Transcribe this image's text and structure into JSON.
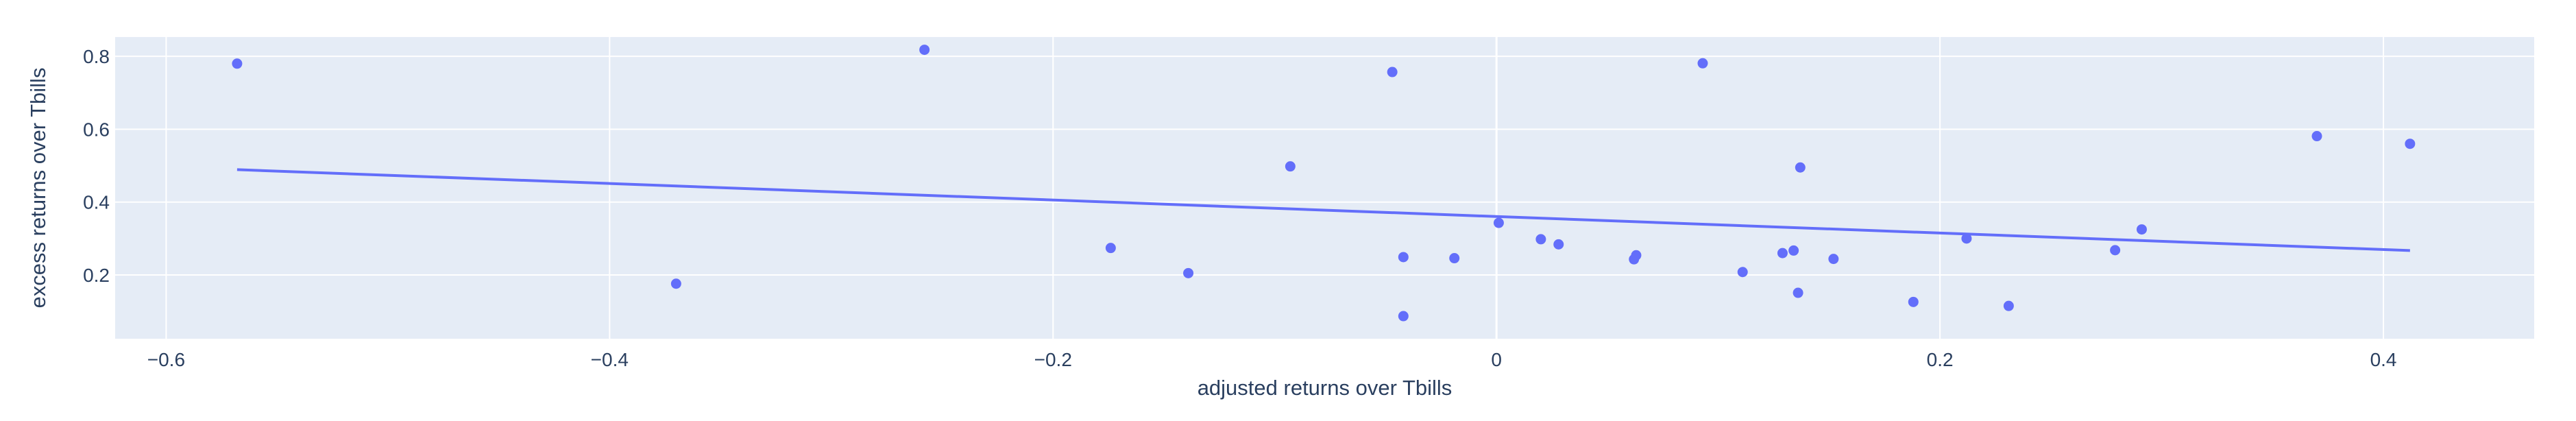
{
  "colors": {
    "plot_background": "#e5ecf6",
    "grid": "#ffffff",
    "marker": "#636efa",
    "line": "#636efa",
    "text": "#2a3f5f"
  },
  "chart_data": {
    "type": "scatter",
    "title": "",
    "xlabel": "adjusted returns over Tbills",
    "ylabel": "excess returns over Tbills",
    "xlim": [
      -0.623,
      0.468
    ],
    "ylim": [
      0.025,
      0.853
    ],
    "x_ticks": [
      -0.6,
      -0.4,
      -0.2,
      0,
      0.2,
      0.4
    ],
    "x_tick_labels": [
      "−0.6",
      "−0.4",
      "−0.2",
      "0",
      "0.2",
      "0.4"
    ],
    "y_ticks": [
      0.2,
      0.4,
      0.6,
      0.8
    ],
    "y_tick_labels": [
      "0.2",
      "0.4",
      "0.6",
      "0.8"
    ],
    "grid": true,
    "legend": false,
    "points": {
      "x": [
        -0.568,
        -0.258,
        -0.37,
        -0.093,
        -0.174,
        -0.139,
        -0.047,
        -0.042,
        -0.042,
        -0.019,
        0.001,
        0.02,
        0.028,
        0.062,
        0.063,
        0.093,
        0.111,
        0.129,
        0.134,
        0.136,
        0.137,
        0.152,
        0.188,
        0.212,
        0.231,
        0.279,
        0.291,
        0.37,
        0.412
      ],
      "y": [
        0.78,
        0.818,
        0.176,
        0.498,
        0.274,
        0.205,
        0.757,
        0.249,
        0.087,
        0.246,
        0.343,
        0.298,
        0.284,
        0.243,
        0.254,
        0.781,
        0.208,
        0.26,
        0.267,
        0.151,
        0.495,
        0.244,
        0.126,
        0.3,
        0.115,
        0.268,
        0.325,
        0.581,
        0.56
      ]
    },
    "trendline": {
      "x": [
        -0.568,
        0.412
      ],
      "y": [
        0.489,
        0.267
      ]
    }
  }
}
